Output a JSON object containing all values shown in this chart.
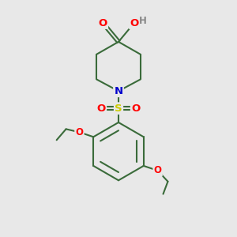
{
  "bg_color": "#e8e8e8",
  "bond_color": "#3a6b3a",
  "bond_width": 1.5,
  "atom_colors": {
    "O": "#ff0000",
    "N": "#0000cc",
    "S": "#cccc00",
    "H": "#888888",
    "C": "#3a6b3a"
  },
  "font_size_atom": 8.5,
  "fig_size": [
    3.0,
    3.0
  ],
  "dpi": 100
}
